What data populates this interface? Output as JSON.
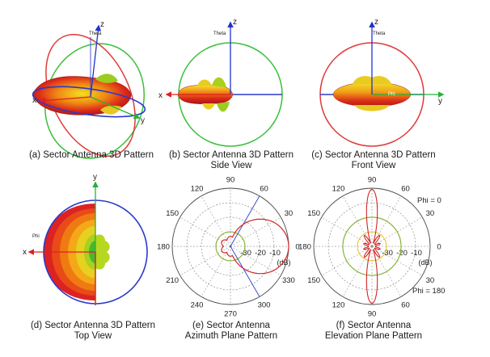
{
  "panels": [
    {
      "id": "a",
      "caption_line1": "(a) Sector Antenna 3D Pattern",
      "caption_line2": ""
    },
    {
      "id": "b",
      "caption_line1": "(b) Sector Antenna 3D Pattern",
      "caption_line2": "Side View"
    },
    {
      "id": "c",
      "caption_line1": "(c) Sector Antenna 3D Pattern",
      "caption_line2": "Front View"
    },
    {
      "id": "d",
      "caption_line1": "(d) Sector Antenna 3D Pattern",
      "caption_line2": "Top View"
    },
    {
      "id": "e",
      "caption_line1": "(e) Sector Antenna",
      "caption_line2": "Azimuth Plane Pattern"
    },
    {
      "id": "f",
      "caption_line1": "(f) Sector Antenna",
      "caption_line2": "Elevation Plane Pattern"
    }
  ],
  "axis_labels": {
    "x": "x",
    "y": "y",
    "z": "z",
    "theta": "Theta",
    "phi": "Phi"
  },
  "azimuth_plot": {
    "angle_labels": [
      "0",
      "30",
      "60",
      "90",
      "120",
      "150",
      "180",
      "210",
      "240",
      "270",
      "300",
      "330"
    ],
    "radial_labels": [
      "-30",
      "-20",
      "-10"
    ],
    "unit": "(dB)"
  },
  "elevation_plot": {
    "angle_labels": [
      "90",
      "60",
      "30",
      "0",
      "30",
      "60",
      "90",
      "120",
      "150",
      "180",
      "150",
      "120"
    ],
    "radial_labels": [
      "-30",
      "-20",
      "-10"
    ],
    "unit": "(dB)",
    "legend": [
      "Phi = 0",
      "Phi = 180"
    ]
  },
  "colors": {
    "axis_red": "#e02020",
    "axis_green": "#22b33a",
    "axis_blue": "#2233cc",
    "ring_red": "#e03a3a",
    "ring_green": "#3cbf3c",
    "ring_blue": "#2a3acc",
    "pattern_red": "#d81e1e",
    "pattern_orange": "#f07a10",
    "pattern_yellow": "#e8d020",
    "pattern_green": "#7ec820",
    "polar_pattern": "#d32626",
    "polar_ring_green": "#8ab43a",
    "polar_grid": "#777777"
  }
}
